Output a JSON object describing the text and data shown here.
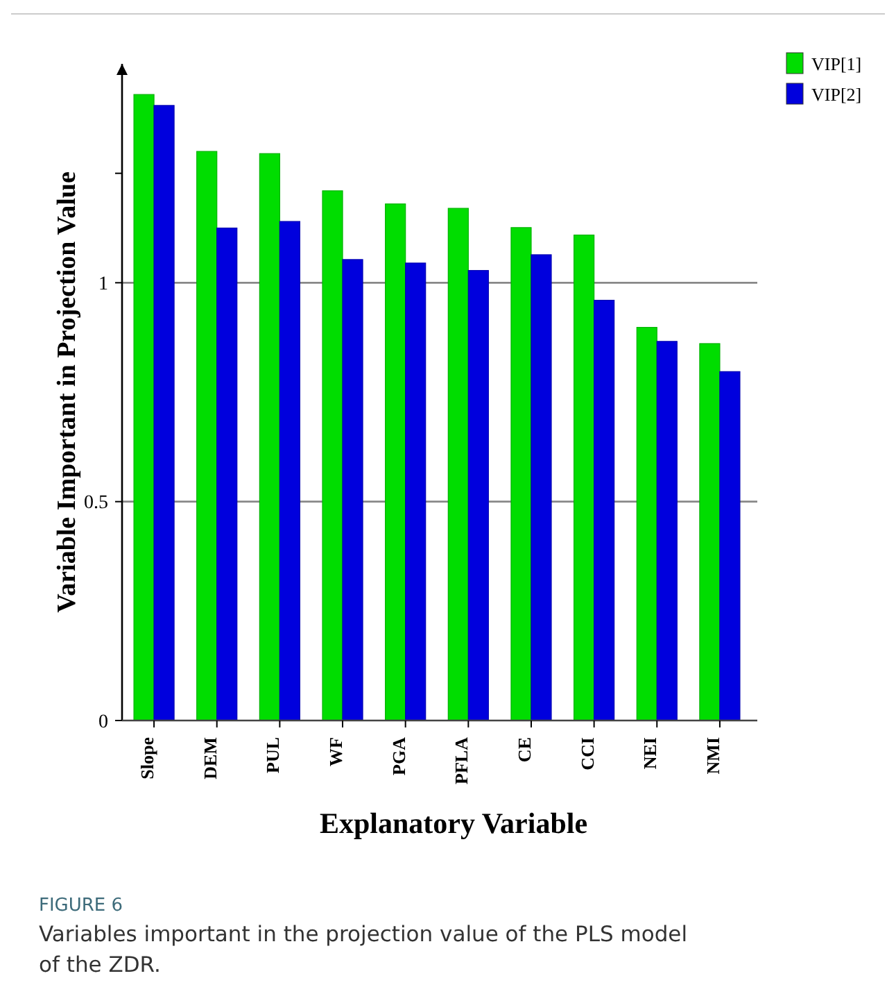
{
  "chart_data": {
    "type": "bar",
    "xlabel": "Explanatory Variable",
    "ylabel": "Variable Important in Projection Value",
    "categories": [
      "Slope",
      "DEM",
      "PUL",
      "WF",
      "PGA",
      "PFLA",
      "CE",
      "CCI",
      "NEI",
      "NMI"
    ],
    "series": [
      {
        "name": "VIP[1]",
        "color": "#00dd00",
        "values": [
          1.43,
          1.3,
          1.295,
          1.21,
          1.18,
          1.17,
          1.126,
          1.109,
          0.898,
          0.861
        ]
      },
      {
        "name": "VIP[2]",
        "color": "#0000dd",
        "values": [
          1.405,
          1.125,
          1.14,
          1.053,
          1.045,
          1.028,
          1.064,
          0.96,
          0.866,
          0.797
        ]
      }
    ],
    "ylim": [
      0,
      1.5
    ],
    "yticks": [
      0,
      0.5,
      1,
      {
        "value": 1.25,
        "label": null
      }
    ],
    "grid": "y",
    "legend": "top right",
    "annotations": [
      "FIGURE 6",
      "Variables important in the projection value of the PLS model of the ZDR."
    ]
  }
}
